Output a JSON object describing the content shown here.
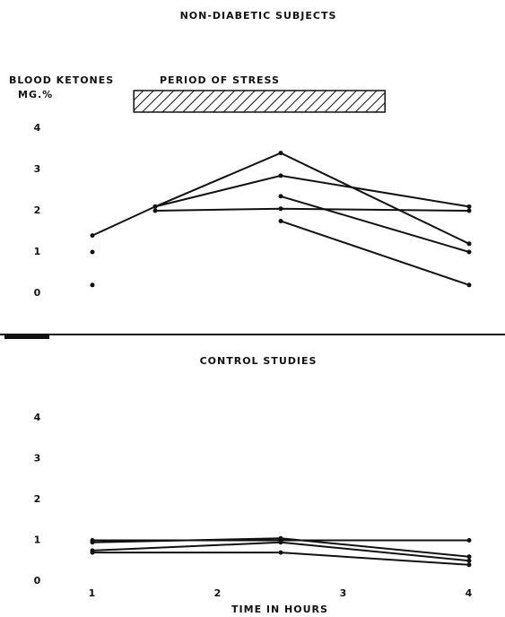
{
  "chart_data": [
    {
      "type": "line",
      "title": "NON-DIABETIC SUBJECTS",
      "y_label": [
        "BLOOD KETONES",
        "MG.%"
      ],
      "period": {
        "label": "PERIOD OF STRESS",
        "start": 1.33,
        "end": 3.33
      },
      "x": [
        1,
        1.5,
        2.5,
        4
      ],
      "xlim": [
        0.5,
        4.2
      ],
      "ylim": [
        0,
        4
      ],
      "yticks": [
        0,
        1,
        2,
        3,
        4
      ],
      "series": [
        {
          "color": "#111",
          "values": [
            1.4,
            2.1,
            3.4,
            1.2
          ]
        },
        {
          "color": "#111",
          "values": [
            null,
            2.1,
            2.85,
            2.1
          ]
        },
        {
          "color": "#111",
          "values": [
            null,
            2.0,
            2.05,
            2.0
          ]
        },
        {
          "color": "#111",
          "values": [
            1.0,
            null,
            2.35,
            1.0
          ]
        },
        {
          "color": "#111",
          "values": [
            0.2,
            null,
            1.75,
            0.2
          ]
        }
      ]
    },
    {
      "type": "line",
      "title": "CONTROL STUDIES",
      "x_label": "TIME IN HOURS",
      "x": [
        1,
        2.5,
        4
      ],
      "xlim": [
        0.5,
        4.2
      ],
      "xticks": [
        1,
        2,
        3,
        4
      ],
      "ylim": [
        0,
        4
      ],
      "yticks": [
        0,
        1,
        2,
        3,
        4
      ],
      "series": [
        {
          "color": "#111",
          "values": [
            1.0,
            1.0,
            1.0
          ]
        },
        {
          "color": "#111",
          "values": [
            0.95,
            1.05,
            0.6
          ]
        },
        {
          "color": "#111",
          "values": [
            0.75,
            0.95,
            0.5
          ]
        },
        {
          "color": "#111",
          "values": [
            0.7,
            0.7,
            0.4
          ]
        }
      ]
    }
  ]
}
